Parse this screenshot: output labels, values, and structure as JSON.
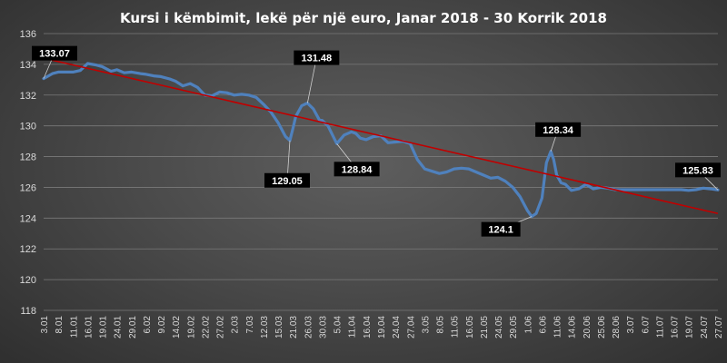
{
  "chart_data": {
    "type": "line",
    "title": "Kursi i këmbimit, lekë për një euro, Janar 2018 - 30 Korrik 2018",
    "xlabel": "",
    "ylabel": "",
    "ylim": [
      118,
      136
    ],
    "yticks": [
      118,
      120,
      122,
      124,
      126,
      128,
      130,
      132,
      134,
      136
    ],
    "grid": true,
    "colors": {
      "series": "#4f81bd",
      "trend": "#c00000"
    },
    "x_tick_labels": [
      "3.01",
      "8.01",
      "11.01",
      "16.01",
      "19.01",
      "24.01",
      "29.01",
      "6.02",
      "9.02",
      "14.02",
      "19.02",
      "22.02",
      "27.02",
      "2.03",
      "7.03",
      "12.03",
      "15.03",
      "21.03",
      "26.03",
      "30.03",
      "5.04",
      "11.04",
      "16.04",
      "19.04",
      "24.04",
      "27.04",
      "3.05",
      "8.05",
      "11.05",
      "16.05",
      "21.05",
      "24.05",
      "29.05",
      "1.06",
      "6.06",
      "11.06",
      "14.06",
      "20.06",
      "25.06",
      "28.06",
      "3.07",
      "6.07",
      "11.07",
      "16.07",
      "19.07",
      "24.07",
      "27.07"
    ],
    "series": [
      {
        "type": "line",
        "x": [
          0,
          0.6,
          1,
          1.4,
          2,
          2.5,
          3,
          3.6,
          4,
          4.6,
          5,
          5.5,
          6,
          6.6,
          7,
          7.5,
          8,
          8.6,
          9,
          9.5,
          10,
          10.5,
          11,
          11.5,
          12,
          12.5,
          13,
          13.5,
          14,
          14.5,
          15,
          15.5,
          16,
          16.5,
          16.8,
          17,
          17.2,
          17.6,
          18,
          18.4,
          18.8,
          19,
          19.4,
          20,
          20.5,
          21,
          21.3,
          21.6,
          22,
          22.5,
          23,
          23.5,
          24,
          24.5,
          25,
          25.5,
          26,
          26.5,
          27,
          27.5,
          28,
          28.5,
          29,
          29.5,
          30,
          30.5,
          31,
          31.5,
          32,
          32.5,
          33,
          33.3,
          33.6,
          34,
          34.3,
          34.6,
          34.8,
          35,
          35.3,
          35.6,
          36,
          36.5,
          37,
          37.5,
          38,
          38.5,
          39,
          39.5,
          40,
          40.5,
          41,
          41.5,
          42,
          42.5,
          43,
          43.5,
          44,
          44.5,
          45,
          45.5,
          46
        ],
        "values": [
          133.07,
          133.4,
          133.5,
          133.5,
          133.5,
          133.6,
          134.05,
          133.95,
          133.85,
          133.55,
          133.65,
          133.45,
          133.5,
          133.4,
          133.35,
          133.25,
          133.2,
          133.05,
          132.9,
          132.6,
          132.75,
          132.5,
          132.0,
          131.95,
          132.2,
          132.15,
          132.0,
          132.05,
          132.0,
          131.85,
          131.4,
          130.9,
          130.2,
          129.3,
          129.05,
          129.8,
          130.6,
          131.3,
          131.48,
          131.1,
          130.4,
          130.35,
          130.0,
          128.84,
          129.4,
          129.6,
          129.5,
          129.2,
          129.1,
          129.3,
          129.35,
          128.9,
          128.95,
          129.0,
          128.85,
          127.8,
          127.2,
          127.05,
          126.9,
          127.0,
          127.2,
          127.25,
          127.2,
          127.0,
          126.8,
          126.6,
          126.65,
          126.4,
          126.0,
          125.4,
          124.5,
          124.1,
          124.3,
          125.3,
          127.6,
          128.34,
          127.8,
          126.8,
          126.3,
          126.2,
          125.8,
          125.9,
          126.2,
          125.9,
          126.0,
          125.95,
          125.85,
          125.85,
          125.85,
          125.85,
          125.85,
          125.85,
          125.85,
          125.85,
          125.85,
          125.85,
          125.8,
          125.85,
          125.95,
          125.9,
          125.83
        ]
      },
      {
        "type": "trendline",
        "x": [
          0,
          46
        ],
        "values": [
          134.4,
          124.3
        ]
      }
    ],
    "annotations": [
      {
        "label": "133.07",
        "x": 0,
        "y": 133.07
      },
      {
        "label": "131.48",
        "x": 18,
        "y": 131.48
      },
      {
        "label": "129.05",
        "x": 16.8,
        "y": 129.05
      },
      {
        "label": "128.84",
        "x": 20,
        "y": 128.84
      },
      {
        "label": "128.34",
        "x": 34.6,
        "y": 128.34
      },
      {
        "label": "124.1",
        "x": 33.3,
        "y": 124.1
      },
      {
        "label": "125.83",
        "x": 46,
        "y": 125.83
      }
    ]
  }
}
